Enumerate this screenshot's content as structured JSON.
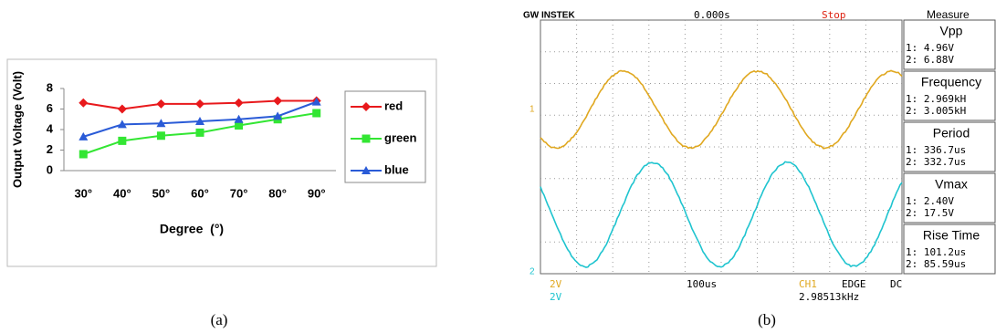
{
  "chart_data": {
    "type": "line",
    "x_label": "Degree  (°)",
    "y_label": "Output Voltage (Volt)",
    "categories": [
      "30°",
      "40°",
      "50°",
      "60°",
      "70°",
      "80°",
      "90°"
    ],
    "series": [
      {
        "name": "red",
        "color": "#e8191c",
        "marker": "diamond",
        "values": [
          6.6,
          6.0,
          6.5,
          6.5,
          6.6,
          6.8,
          6.8
        ]
      },
      {
        "name": "green",
        "color": "#33e633",
        "marker": "square",
        "values": [
          1.6,
          2.9,
          3.4,
          3.7,
          4.4,
          5.0,
          5.6
        ]
      },
      {
        "name": "blue",
        "color": "#2a5bd7",
        "marker": "triangle",
        "values": [
          3.3,
          4.5,
          4.6,
          4.8,
          5.0,
          5.3,
          6.7
        ]
      }
    ],
    "ylim": [
      0,
      8
    ],
    "yticks": [
      0,
      2,
      4,
      6,
      8
    ],
    "grid": false,
    "legend": "right"
  },
  "scope": {
    "top": {
      "brand": "GW INSTEK",
      "time": "0.000s",
      "state": "Stop",
      "panel": "Measure"
    },
    "measures": [
      {
        "name": "Vpp",
        "ch1": "1: 4.96V",
        "ch2": "2: 6.88V"
      },
      {
        "name": "Frequency",
        "ch1": "1: 2.969kH",
        "ch2": "2: 3.005kH"
      },
      {
        "name": "Period",
        "ch1": "1: 336.7us",
        "ch2": "2: 332.7us"
      },
      {
        "name": "Vmax",
        "ch1": "1: 2.40V",
        "ch2": "2: 17.5V"
      },
      {
        "name": "Rise Time",
        "ch1": "1: 101.2us",
        "ch2": "2: 85.59us"
      }
    ],
    "bottom": {
      "ch1_scale": "2V",
      "ch2_scale": "2V",
      "timebase": "100us",
      "trigger_source": "CH1",
      "trigger_type": "EDGE",
      "coupling": "DC",
      "frequency": "2.98513kHz"
    },
    "markers": {
      "ch1": "1",
      "ch2": "2"
    }
  },
  "captions": [
    "(a)",
    "(b)"
  ]
}
